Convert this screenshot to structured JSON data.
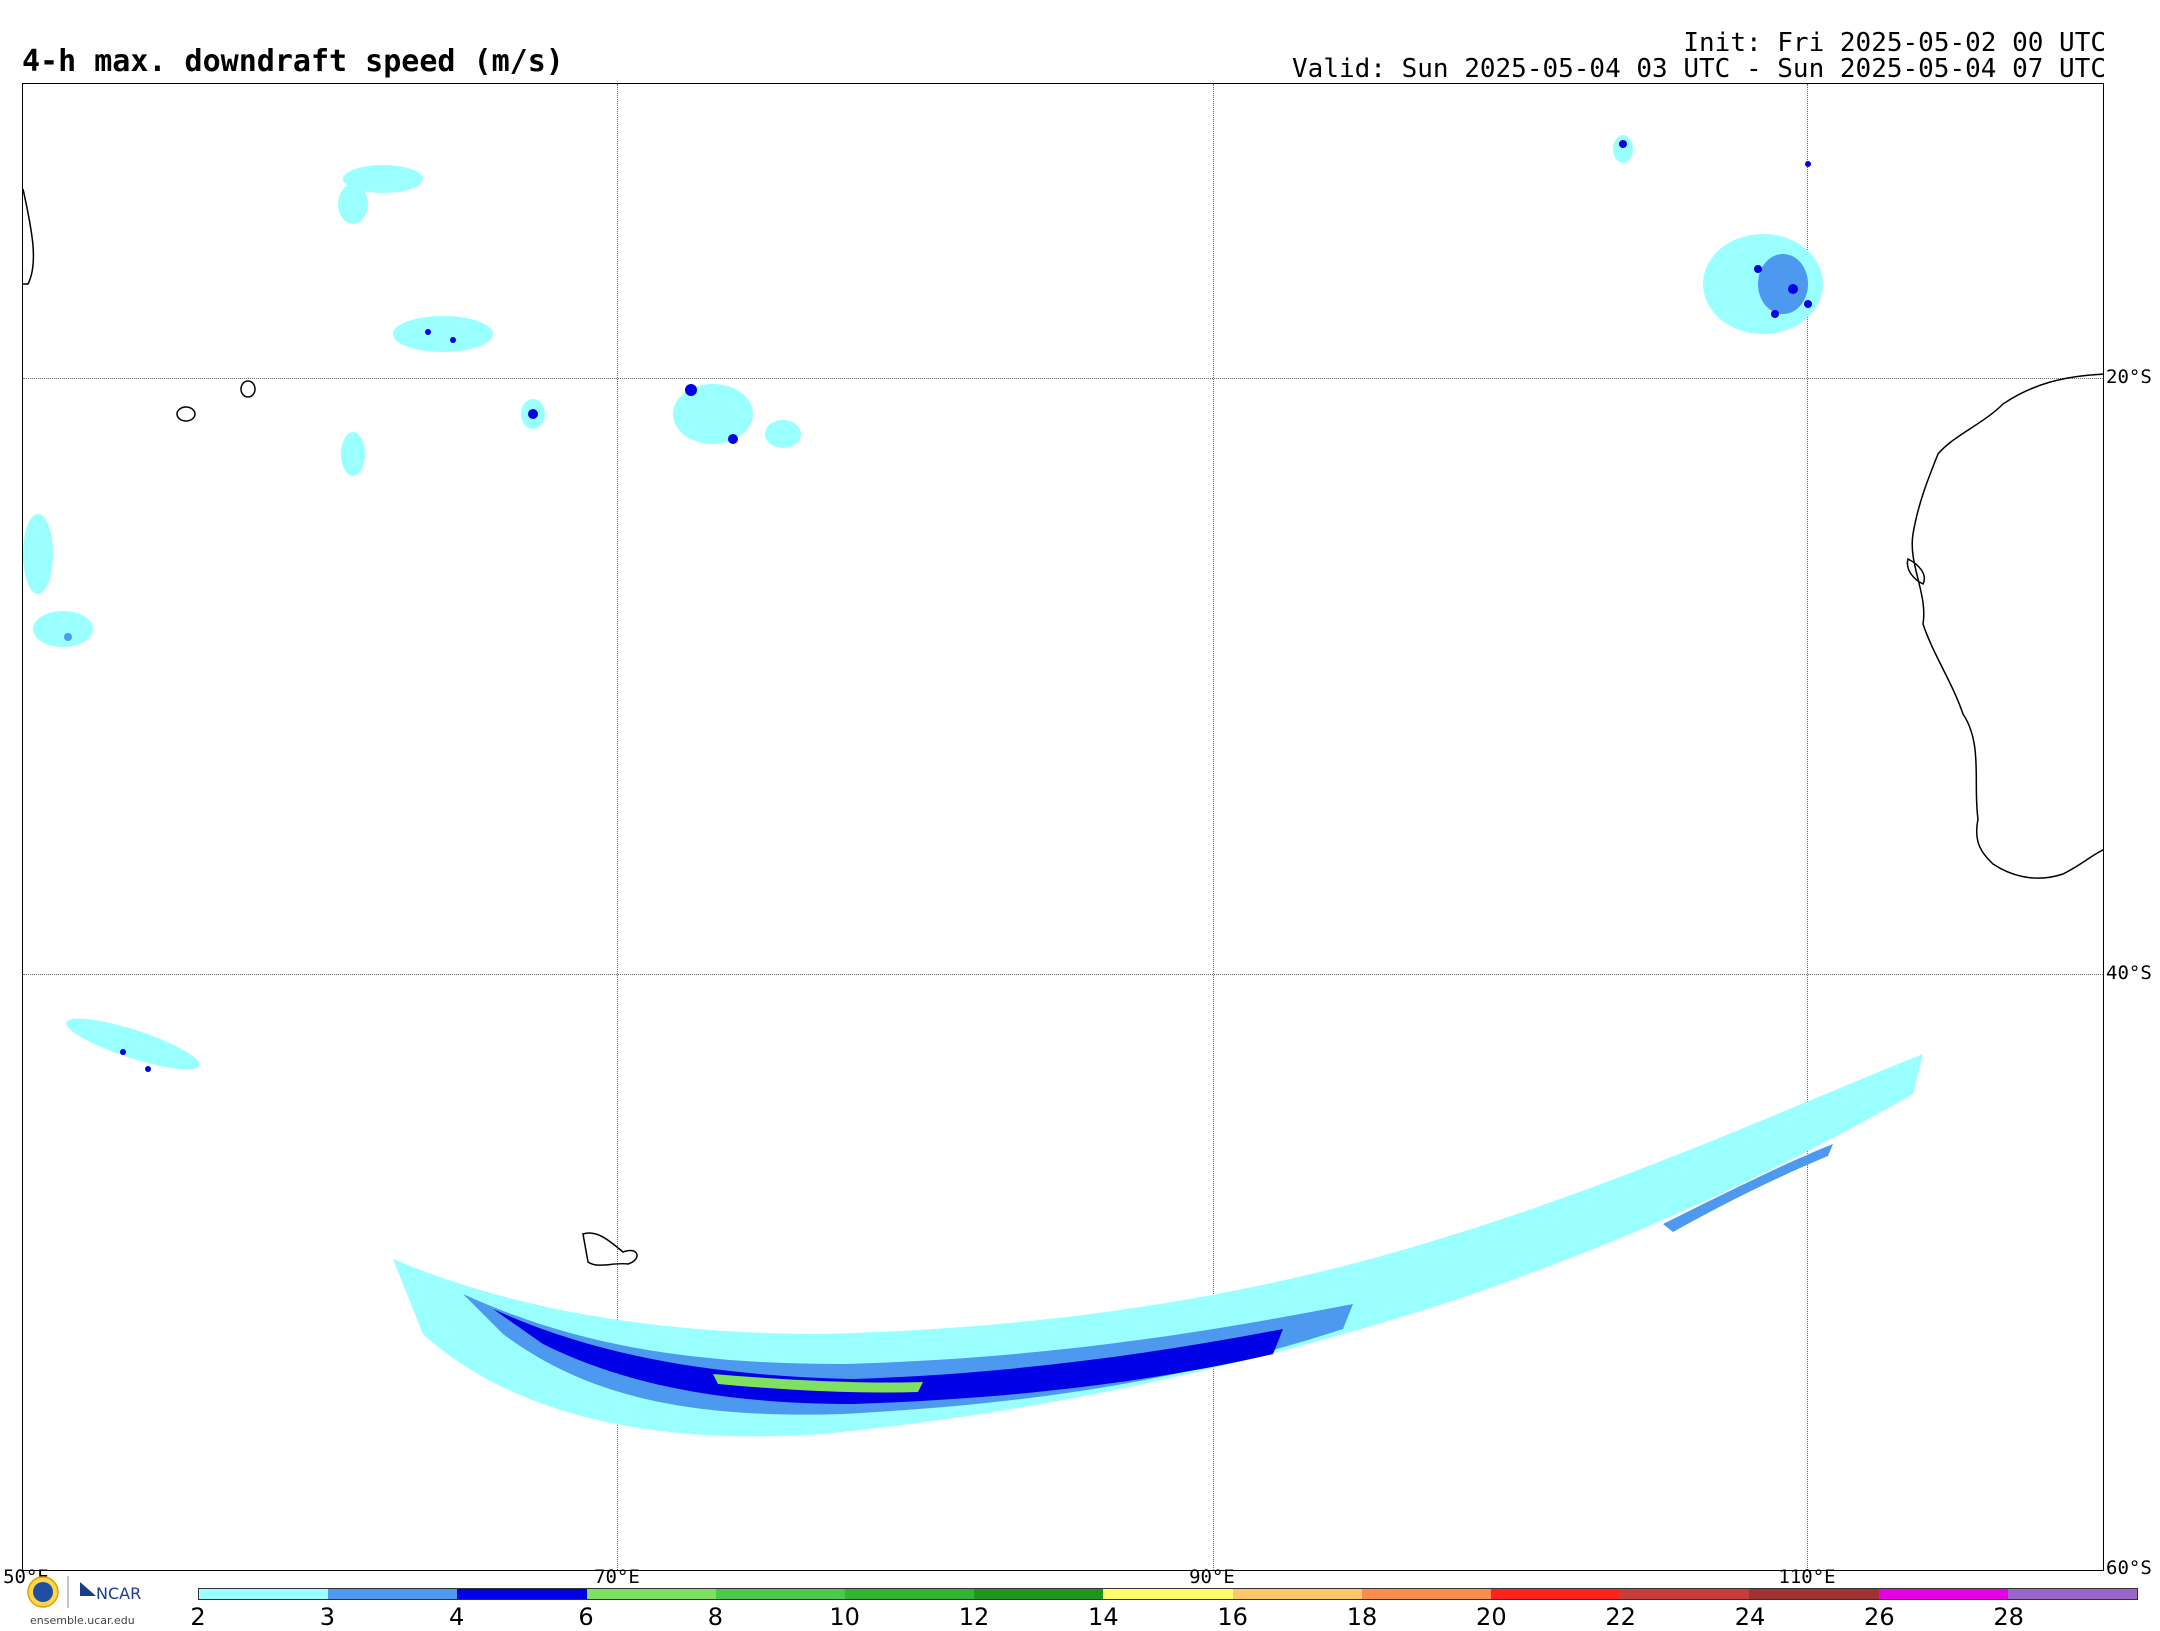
{
  "title": "4-h max. downdraft speed (m/s)",
  "init_line": "Init: Fri 2025-05-02 00 UTC",
  "valid_line": "Valid: Sun 2025-05-04 03 UTC - Sun 2025-05-04 07 UTC",
  "lat_labels": [
    "20°S",
    "40°S",
    "60°S"
  ],
  "lon_labels": [
    "50°E",
    "70°E",
    "90°E",
    "110°E"
  ],
  "colorbar": {
    "ticks": [
      "2",
      "3",
      "4",
      "6",
      "8",
      "10",
      "12",
      "14",
      "16",
      "18",
      "20",
      "22",
      "24",
      "26",
      "28"
    ],
    "colors": [
      "#99ffff",
      "#4d99f0",
      "#0000e6",
      "#80e060",
      "#4cc84c",
      "#32b432",
      "#1e961e",
      "#ffff66",
      "#ffc866",
      "#ff8c4c",
      "#ff2020",
      "#c83c3c",
      "#a03232",
      "#e600e6",
      "#9966cc"
    ]
  },
  "logo": {
    "url_text": "ensemble.ucar.edu",
    "org": "NCAR"
  },
  "icons": [
    "nsf-logo-icon",
    "ncar-logo-icon"
  ]
}
